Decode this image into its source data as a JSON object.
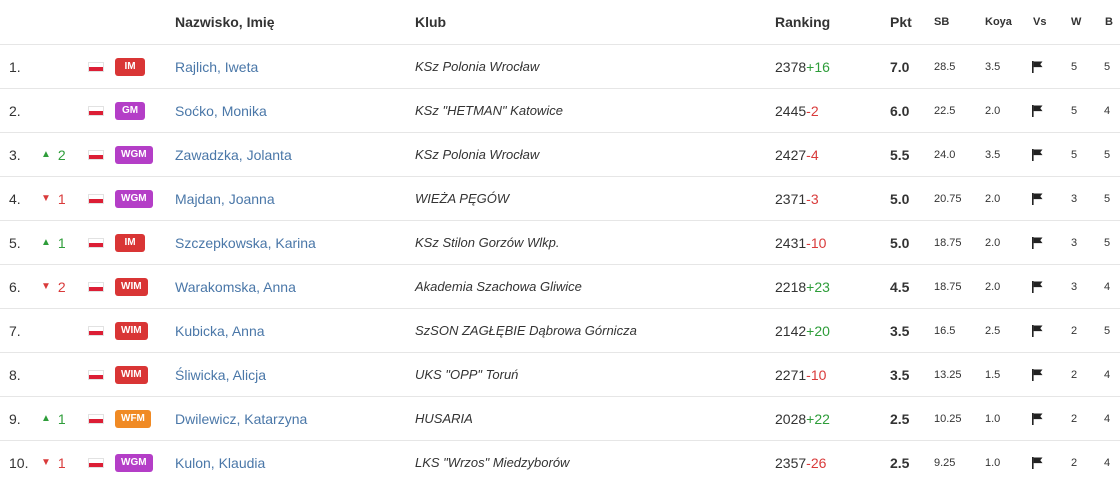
{
  "header": {
    "name": "Nazwisko, Imię",
    "club": "Klub",
    "ranking": "Ranking",
    "pkt": "Pkt",
    "sb": "SB",
    "koya": "Koya",
    "vs": "Vs",
    "w": "W",
    "b": "B"
  },
  "colors": {
    "IM": "#d93535",
    "GM": "#b43ec7",
    "WGM": "#b43ec7",
    "WIM": "#d93535",
    "WFM": "#f08a24",
    "up": "#2e9d3a",
    "down": "#d93a3a",
    "link": "#4a77a8"
  },
  "rows": [
    {
      "pos": "1.",
      "dir": "",
      "chg": "",
      "title": "IM",
      "name": "Rajlich, Iweta",
      "club": "KSz Polonia Wrocław",
      "rating": "2378",
      "diff": "+16",
      "pkt": "7.0",
      "sb": "28.5",
      "koya": "3.5",
      "vs_icon": "flag-icon",
      "w": "5",
      "b": "5"
    },
    {
      "pos": "2.",
      "dir": "",
      "chg": "",
      "title": "GM",
      "name": "Soćko, Monika",
      "club": "KSz \"HETMAN\" Katowice",
      "rating": "2445",
      "diff": "-2",
      "pkt": "6.0",
      "sb": "22.5",
      "koya": "2.0",
      "vs_icon": "flag-icon",
      "w": "5",
      "b": "4"
    },
    {
      "pos": "3.",
      "dir": "up",
      "chg": "2",
      "title": "WGM",
      "name": "Zawadzka, Jolanta",
      "club": "KSz Polonia Wrocław",
      "rating": "2427",
      "diff": "-4",
      "pkt": "5.5",
      "sb": "24.0",
      "koya": "3.5",
      "vs_icon": "flag-icon",
      "w": "5",
      "b": "5"
    },
    {
      "pos": "4.",
      "dir": "down",
      "chg": "1",
      "title": "WGM",
      "name": "Majdan, Joanna",
      "club": "WIEŻA PĘGÓW",
      "rating": "2371",
      "diff": "-3",
      "pkt": "5.0",
      "sb": "20.75",
      "koya": "2.0",
      "vs_icon": "flag-icon",
      "w": "3",
      "b": "5"
    },
    {
      "pos": "5.",
      "dir": "up",
      "chg": "1",
      "title": "IM",
      "name": "Szczepkowska, Karina",
      "club": "KSz Stilon Gorzów Wlkp.",
      "rating": "2431",
      "diff": "-10",
      "pkt": "5.0",
      "sb": "18.75",
      "koya": "2.0",
      "vs_icon": "flag-icon",
      "w": "3",
      "b": "5"
    },
    {
      "pos": "6.",
      "dir": "down",
      "chg": "2",
      "title": "WIM",
      "name": "Warakomska, Anna",
      "club": "Akademia Szachowa Gliwice",
      "rating": "2218",
      "diff": "+23",
      "pkt": "4.5",
      "sb": "18.75",
      "koya": "2.0",
      "vs_icon": "flag-icon",
      "w": "3",
      "b": "4"
    },
    {
      "pos": "7.",
      "dir": "",
      "chg": "",
      "title": "WIM",
      "name": "Kubicka, Anna",
      "club": "SzSON ZAGŁĘBIE Dąbrowa Górnicza",
      "rating": "2142",
      "diff": "+20",
      "pkt": "3.5",
      "sb": "16.5",
      "koya": "2.5",
      "vs_icon": "flag-icon",
      "w": "2",
      "b": "5"
    },
    {
      "pos": "8.",
      "dir": "",
      "chg": "",
      "title": "WIM",
      "name": "Śliwicka, Alicja",
      "club": "UKS \"OPP\" Toruń",
      "rating": "2271",
      "diff": "-10",
      "pkt": "3.5",
      "sb": "13.25",
      "koya": "1.5",
      "vs_icon": "flag-icon",
      "w": "2",
      "b": "4"
    },
    {
      "pos": "9.",
      "dir": "up",
      "chg": "1",
      "title": "WFM",
      "name": "Dwilewicz, Katarzyna",
      "club": "HUSARIA",
      "rating": "2028",
      "diff": "+22",
      "pkt": "2.5",
      "sb": "10.25",
      "koya": "1.0",
      "vs_icon": "flag-icon",
      "w": "2",
      "b": "4"
    },
    {
      "pos": "10.",
      "dir": "down",
      "chg": "1",
      "title": "WGM",
      "name": "Kulon, Klaudia",
      "club": "LKS \"Wrzos\" Miedzyborów",
      "rating": "2357",
      "diff": "-26",
      "pkt": "2.5",
      "sb": "9.25",
      "koya": "1.0",
      "vs_icon": "flag-icon",
      "w": "2",
      "b": "4"
    }
  ]
}
